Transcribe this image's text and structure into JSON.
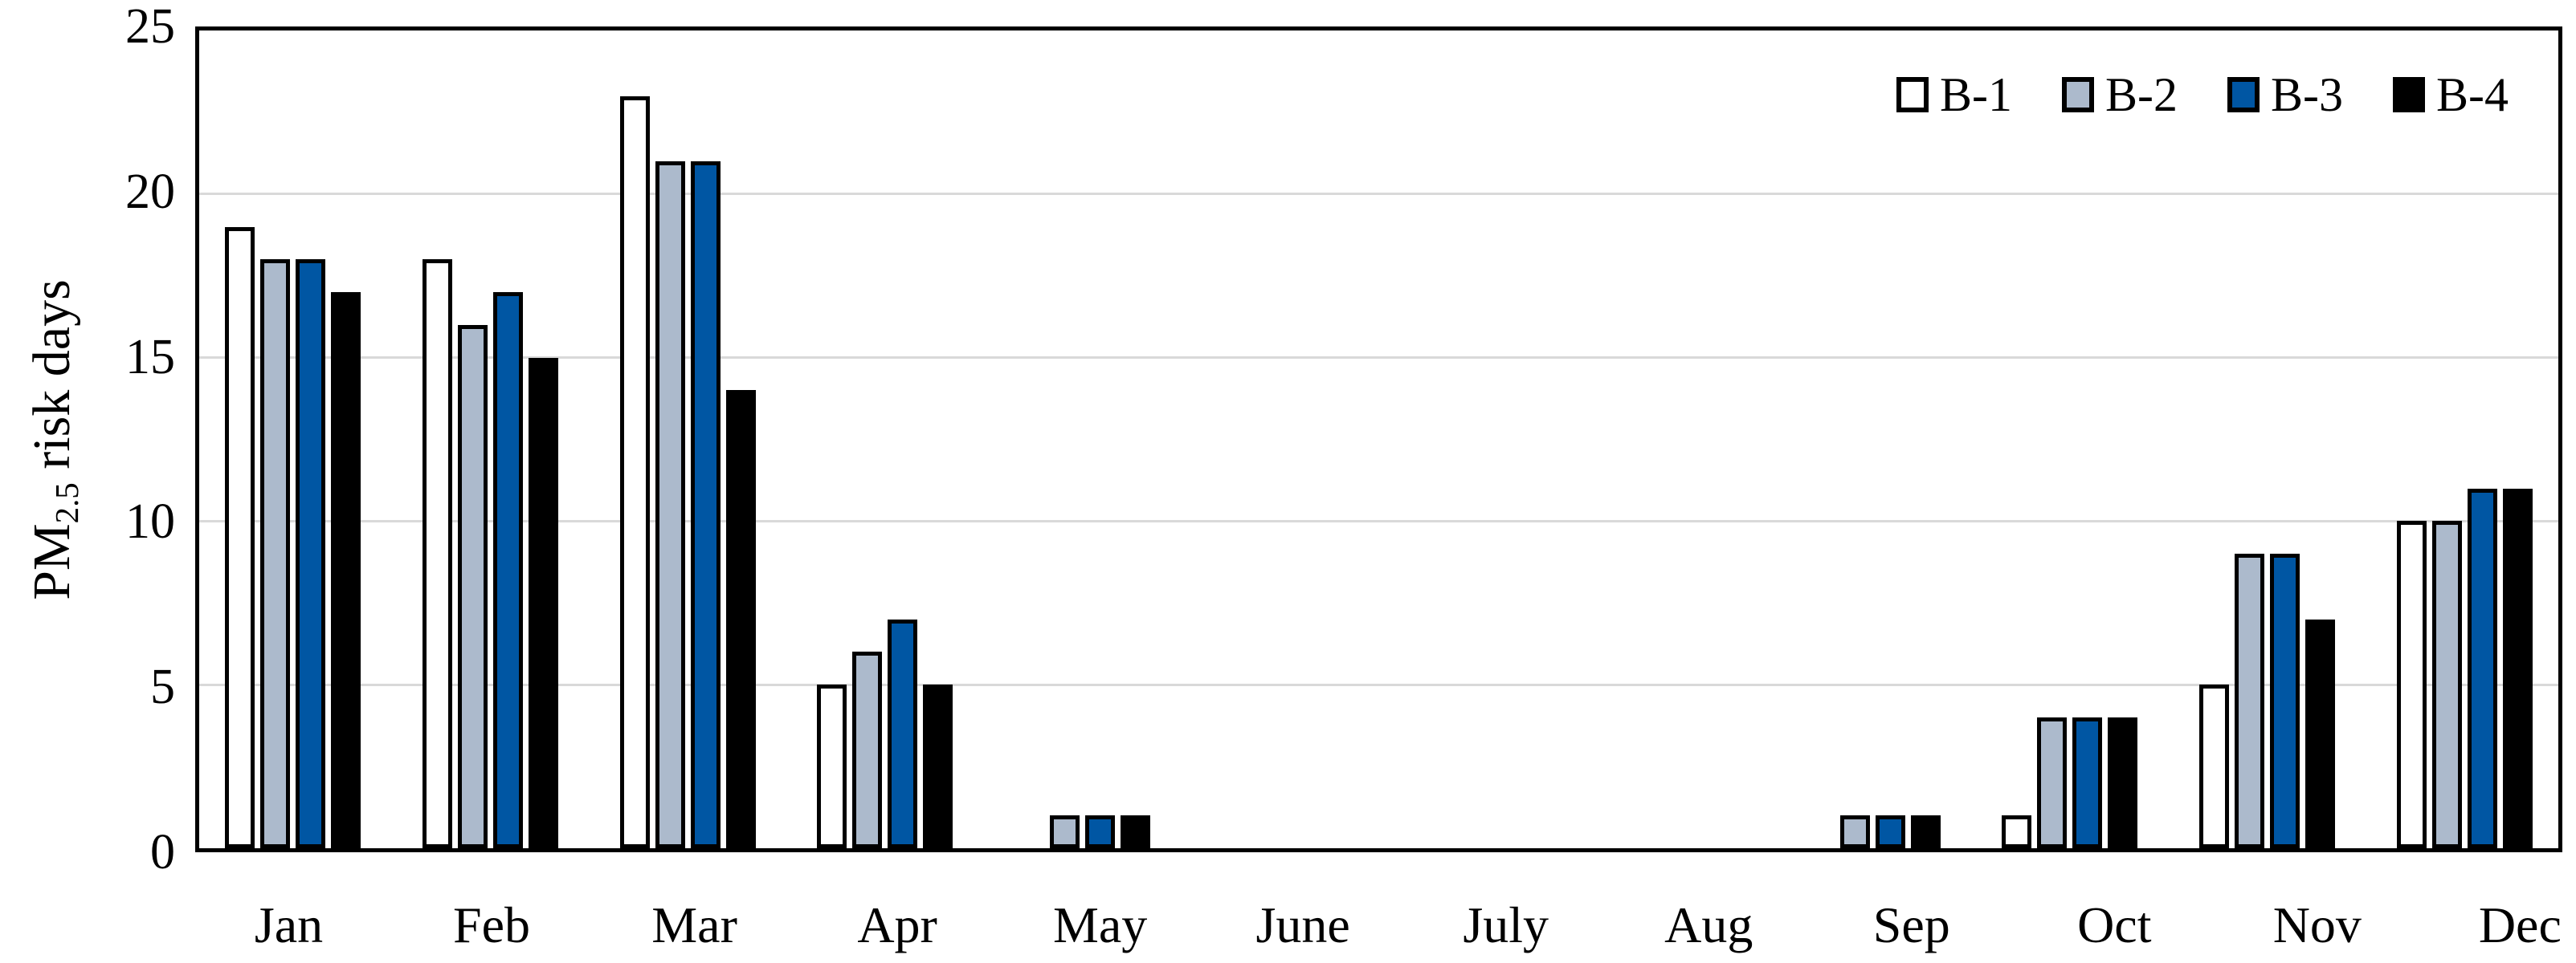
{
  "chart_data": {
    "type": "bar",
    "title": "",
    "ylabel_prefix": "PM",
    "ylabel_subscript": "2.5",
    "ylabel_suffix": " risk days",
    "xlabel": "",
    "categories": [
      "Jan",
      "Feb",
      "Mar",
      "Apr",
      "May",
      "June",
      "July",
      "Aug",
      "Sep",
      "Oct",
      "Nov",
      "Dec"
    ],
    "series": [
      {
        "name": "B-1",
        "color": "#FFFFFF",
        "values": [
          19,
          18,
          23,
          5,
          0,
          0,
          0,
          0,
          0,
          1,
          5,
          10
        ]
      },
      {
        "name": "B-2",
        "color": "#ACBACC",
        "values": [
          18,
          16,
          21,
          6,
          1,
          0,
          0,
          0,
          1,
          4,
          9,
          10
        ]
      },
      {
        "name": "B-3",
        "color": "#0056A3",
        "values": [
          18,
          17,
          21,
          7,
          1,
          0,
          0,
          0,
          1,
          4,
          9,
          11
        ]
      },
      {
        "name": "B-4",
        "color": "#000000",
        "values": [
          17,
          15,
          14,
          5,
          1,
          0,
          0,
          0,
          1,
          4,
          7,
          11
        ]
      }
    ],
    "ylim": [
      0,
      25
    ],
    "ytick_step": 5,
    "yticks": [
      0,
      5,
      10,
      15,
      20,
      25
    ],
    "gridline_values": [
      5,
      10,
      15,
      20
    ],
    "grid": "horizontal",
    "gridline_color": "#D9D9D9",
    "axis_color": "#000000",
    "bar_outline_color": "#000000",
    "plot_border": "box",
    "legend_position": "top-right-inside"
  }
}
